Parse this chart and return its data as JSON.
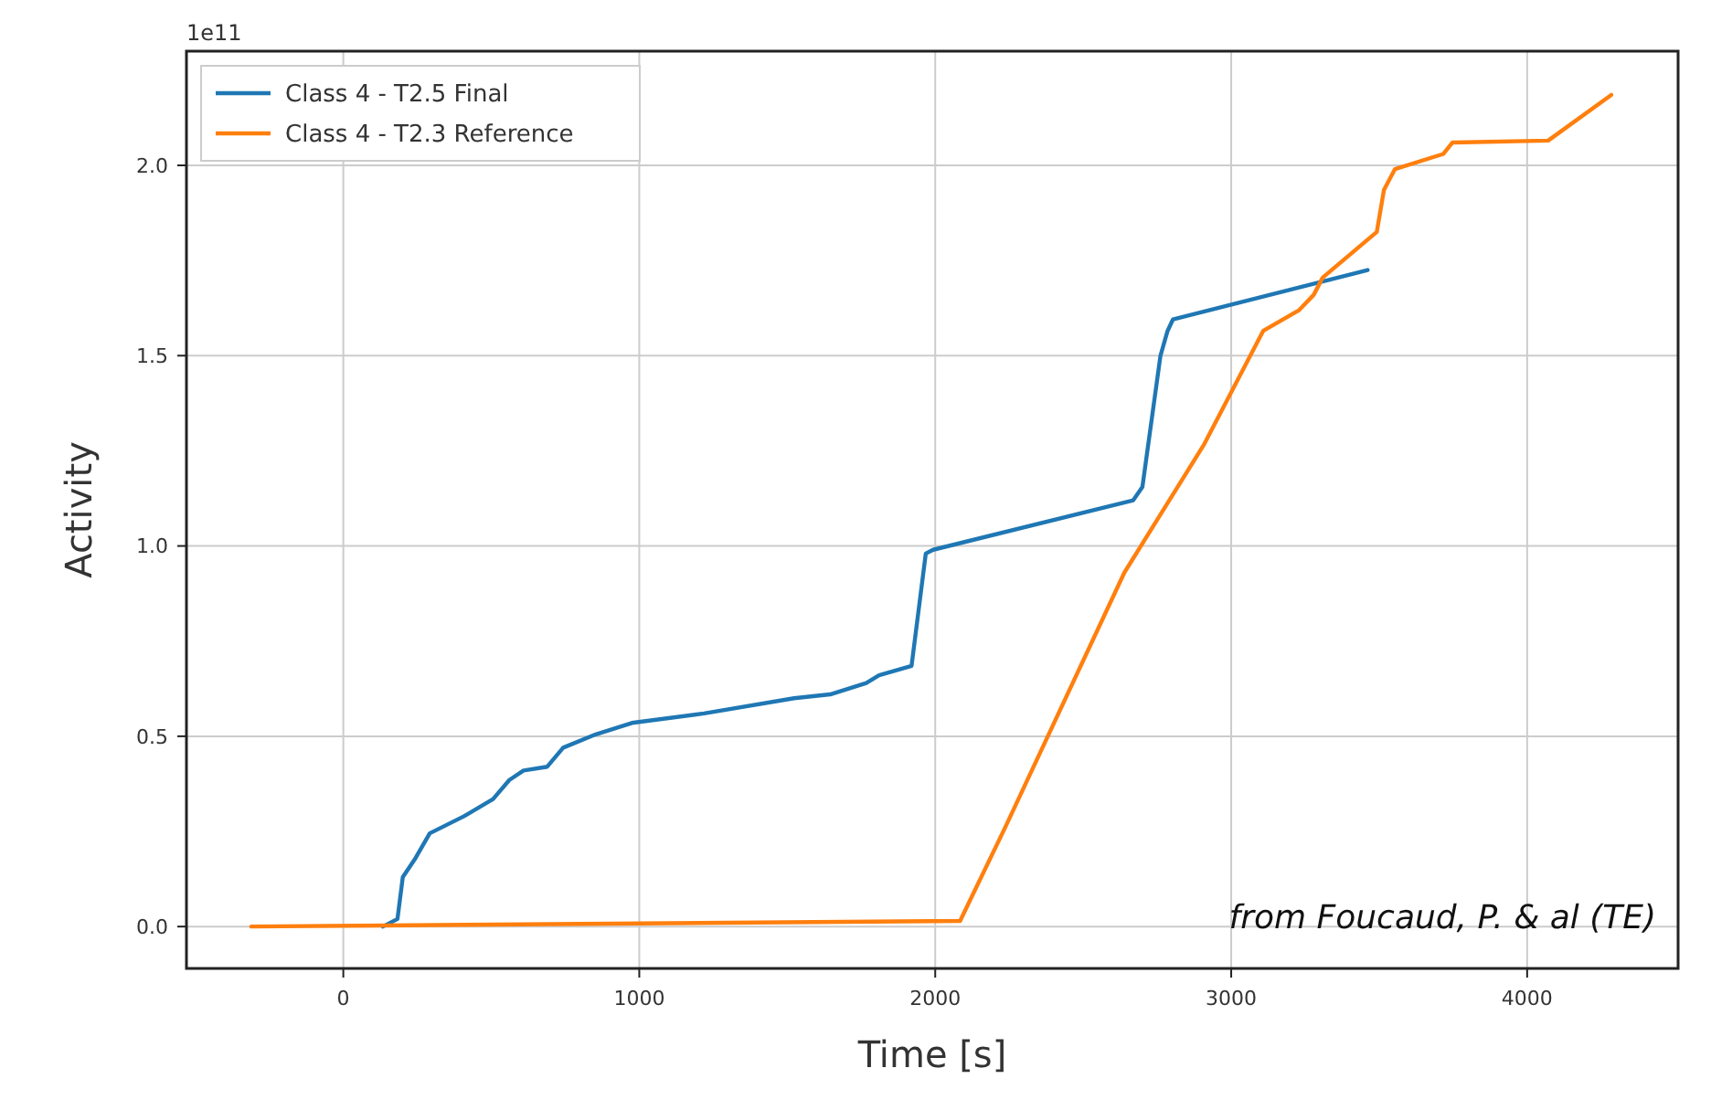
{
  "chart_data": {
    "type": "line",
    "xlabel": "Time [s]",
    "ylabel": "Activity",
    "annotations": [
      "1e11",
      "from Foucaud, P. & al (TE)"
    ],
    "xlim": [
      -530,
      4510
    ],
    "xticks": [
      0,
      1000,
      2000,
      3000,
      4000
    ],
    "ylim": [
      -0.11,
      2.3
    ],
    "yticks": [
      {
        "value": 0,
        "label": "0.0"
      },
      {
        "value": 0.5,
        "label": "0.5"
      },
      {
        "value": 1,
        "label": "1.0"
      },
      {
        "value": 1.5,
        "label": "1.5"
      },
      {
        "value": 2,
        "label": "2.0"
      }
    ],
    "grid": true,
    "legend": "top left",
    "line_style": "solid",
    "series": [
      {
        "name": "Class 4 - T2.5 Final",
        "color": "#1f77b4",
        "x": [
          134,
          183,
          201,
          244,
          292,
          408,
          506,
          561,
          609,
          689,
          743,
          853,
          975,
          1219,
          1523,
          1645,
          1767,
          1810,
          1920,
          1968,
          1993,
          2669,
          2700,
          2761,
          2785,
          2803,
          3461
        ],
        "values": [
          0.0,
          0.02,
          0.13,
          0.18,
          0.245,
          0.29,
          0.335,
          0.385,
          0.41,
          0.42,
          0.47,
          0.505,
          0.535,
          0.56,
          0.6,
          0.61,
          0.64,
          0.66,
          0.685,
          0.98,
          0.99,
          1.12,
          1.155,
          1.5,
          1.565,
          1.595,
          1.725
        ]
      },
      {
        "name": "Class 4 - T2.3 Reference",
        "color": "#ff7f0e",
        "x": [
          -311,
          2084,
          2236,
          2639,
          2907,
          3108,
          3230,
          3279,
          3309,
          3492,
          3516,
          3553,
          3717,
          3748,
          4071,
          4284
        ],
        "values": [
          0.0,
          0.015,
          0.26,
          0.93,
          1.265,
          1.565,
          1.62,
          1.66,
          1.705,
          1.825,
          1.935,
          1.99,
          2.03,
          2.06,
          2.065,
          2.185
        ]
      }
    ]
  }
}
